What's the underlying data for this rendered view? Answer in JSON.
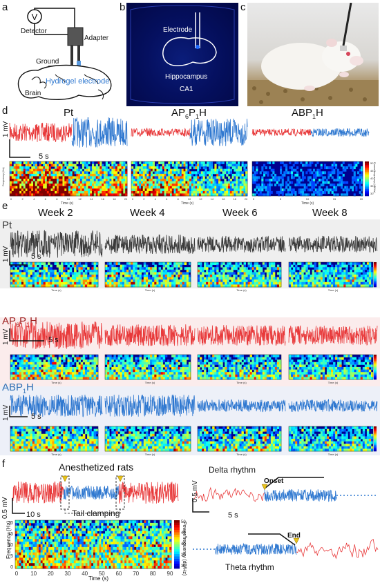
{
  "panel_letters": [
    "a",
    "b",
    "c",
    "d",
    "e",
    "f"
  ],
  "panel_a": {
    "detector": "Detector",
    "adapter": "Adapter",
    "ground": "Ground",
    "brain": "Brain",
    "electrode": "Hydrogel electrode"
  },
  "panel_b": {
    "electrode": "Electrode",
    "region": "Hippocampus",
    "subregion": "CA1"
  },
  "panel_d": {
    "titles": [
      "Pt",
      "AP6P1H",
      "ABP1H"
    ],
    "scale_y": "1 mV",
    "scale_x": "5 s",
    "spec_ylabel": "Frequency (Hz)",
    "spec_xlabel": "Time (s)",
    "colorbar_label": "Power/frequency (dB/Hz)",
    "colorbar_ticks": [
      "50",
      "45",
      "40",
      "35",
      "30"
    ],
    "xticks_pt": [
      "0",
      "2",
      "4",
      "6",
      "8",
      "10",
      "12",
      "14",
      "16",
      "18",
      "20"
    ],
    "xticks_ap": [
      "0",
      "2",
      "4",
      "6",
      "8",
      "10",
      "12",
      "14",
      "16",
      "18",
      "20"
    ],
    "xticks_abp": [
      "0",
      "5",
      "10",
      "15",
      "20"
    ]
  },
  "panel_e": {
    "weeks": [
      "Week 2",
      "Week 4",
      "Week 6",
      "Week 8"
    ],
    "rows": [
      "Pt",
      "AP6P1H",
      "ABP1H"
    ],
    "scale_y": "1 mV",
    "scale_x": "5 s",
    "spec_xlabel": "Time (s)"
  },
  "panel_f": {
    "title": "Anesthetized rats",
    "stim": "Tail clamping",
    "scale_y": "0.5 mV",
    "scale_x": "10 s",
    "spec_ylabel": "Frequency (Hz)",
    "spec_xlabel": "Time (s)",
    "spec_xticks": [
      "0",
      "10",
      "20",
      "30",
      "40",
      "50",
      "60",
      "70",
      "80",
      "90"
    ],
    "spec_yticks": [
      "20",
      "15",
      "10",
      "5",
      "0"
    ],
    "colorbar_ticks": [
      "50",
      "45",
      "40",
      "35",
      "30"
    ],
    "colorbar_label": "Power/frequency (dB/Hz)",
    "delta": "Delta rhythm",
    "theta": "Theta rhythm",
    "onset": "Onset",
    "end": "End",
    "scale_y2": "0.5 mV",
    "scale_x2": "5 s"
  },
  "colors": {
    "pt": "#3a3a3a",
    "red": "#e8393a",
    "blue": "#2f78d0",
    "ap_label": "#9e1f1f",
    "abp_label": "#2f6fb4",
    "marker": "#e8c21a"
  }
}
